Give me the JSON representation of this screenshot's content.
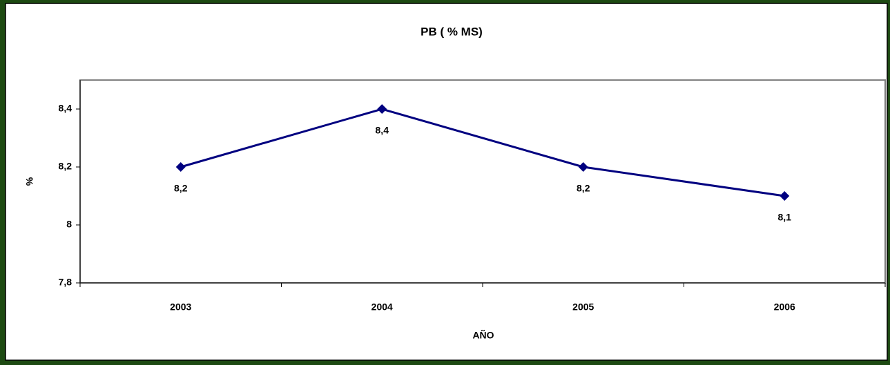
{
  "chart_data": {
    "type": "line",
    "title": "PB ( % MS)",
    "x_label": "AÑO",
    "y_label": "%",
    "categories": [
      "2003",
      "2004",
      "2005",
      "2006"
    ],
    "series": [
      {
        "name": "PB",
        "color": "#000080",
        "values": [
          8.2,
          8.4,
          8.2,
          8.1
        ],
        "value_labels": [
          "8,2",
          "8,4",
          "8,2",
          "8,1"
        ]
      }
    ],
    "ylim": [
      7.8,
      8.5
    ],
    "yticks": [
      {
        "value": 7.8,
        "label": "7,8"
      },
      8,
      {
        "value": 8.2,
        "label": "8,2"
      },
      {
        "value": 8.4,
        "label": "8,4"
      }
    ],
    "grid": false
  }
}
